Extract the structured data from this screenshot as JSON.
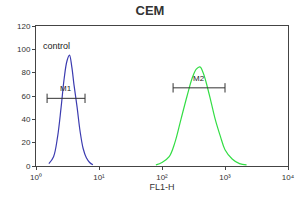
{
  "chart_data": {
    "type": "line",
    "title": "CEM",
    "x_label": "FL1-H",
    "log": "x",
    "grid": false,
    "xlim": [
      1,
      10000
    ],
    "xticks": [
      {
        "value": 1,
        "label": "10⁰"
      },
      {
        "value": 10,
        "label": "10¹"
      },
      {
        "value": 100,
        "label": "10²"
      },
      {
        "value": 1000,
        "label": "10³"
      },
      {
        "value": 10000,
        "label": "10⁴"
      }
    ],
    "ylim": [
      0,
      120
    ],
    "yticks": [
      0,
      20,
      40,
      60,
      80,
      100,
      120
    ],
    "series": [
      {
        "color": "#3b3bb0",
        "x": [
          1.6,
          1.9,
          2.2,
          2.5,
          2.8,
          3.1,
          3.4,
          3.7,
          4.0,
          4.5,
          5.0,
          5.6,
          6.3,
          7.1,
          8.0
        ],
        "values": [
          2,
          8,
          25,
          50,
          75,
          90,
          95,
          85,
          70,
          50,
          30,
          15,
          7,
          3,
          1
        ]
      },
      {
        "color": "#33dd44",
        "x": [
          80,
          100,
          130,
          160,
          200,
          250,
          300,
          350,
          400,
          450,
          500,
          600,
          700,
          850,
          1000,
          1300,
          1700,
          2200
        ],
        "values": [
          1,
          3,
          8,
          20,
          40,
          60,
          75,
          83,
          85,
          80,
          72,
          55,
          40,
          25,
          14,
          6,
          2,
          1
        ]
      }
    ],
    "annotations": [
      {
        "text": "control",
        "x": 1.2,
        "y": 103
      }
    ],
    "gates": [
      {
        "label": "M1",
        "x": [
          1.5,
          6
        ],
        "y": 58
      },
      {
        "label": "M2",
        "x": [
          150,
          1000
        ],
        "y": 67
      }
    ]
  }
}
